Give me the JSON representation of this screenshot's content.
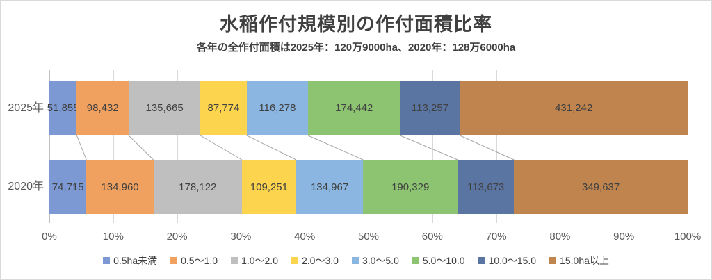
{
  "chart_data": {
    "type": "bar",
    "variant": "100-percent-stacked-horizontal",
    "title": "水稲作付規模別の作付面積比率",
    "subtitle": "各年の全作付面積は2025年：120万9000ha、2020年：128万6000ha",
    "categories": [
      "2025年",
      "2020年"
    ],
    "series": [
      {
        "name": "0.5ha未満",
        "color": "#7d99d3",
        "values": [
          51855,
          74715
        ]
      },
      {
        "name": "0.5～1.0",
        "color": "#f0a15f",
        "values": [
          98432,
          134960
        ]
      },
      {
        "name": "1.0～2.0",
        "color": "#bfbfbf",
        "values": [
          135665,
          178122
        ]
      },
      {
        "name": "2.0～3.0",
        "color": "#fdd44d",
        "values": [
          87774,
          109251
        ]
      },
      {
        "name": "3.0～5.0",
        "color": "#8ab6e1",
        "values": [
          116278,
          134967
        ]
      },
      {
        "name": "5.0～10.0",
        "color": "#8dc471",
        "values": [
          174442,
          190329
        ]
      },
      {
        "name": "10.0～15.0",
        "color": "#5b75a3",
        "values": [
          113257,
          113673
        ]
      },
      {
        "name": "15.0ha以上",
        "color": "#c0854f",
        "values": [
          431242,
          349637
        ]
      }
    ],
    "value_unit": "ha",
    "x_axis": {
      "ticks": [
        "0%",
        "10%",
        "20%",
        "30%",
        "40%",
        "50%",
        "60%",
        "70%",
        "80%",
        "90%",
        "100%"
      ],
      "range_percent": [
        0,
        100
      ]
    },
    "grid": true,
    "legend_position": "bottom",
    "style_colors": {
      "gridline": "#d9d9d9",
      "axis_line": "#bfbfbf",
      "connector_line": "#a6a6a6",
      "text_dark": "#404040",
      "text_axis": "#595959"
    }
  }
}
